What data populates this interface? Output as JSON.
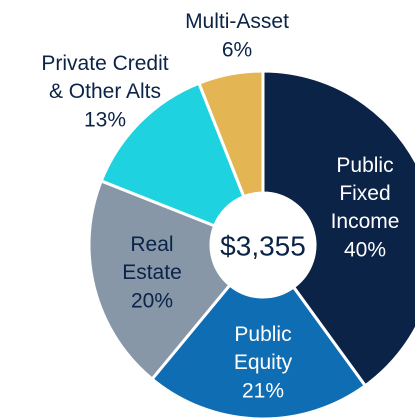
{
  "chart_data": {
    "type": "donut",
    "center_label": "$3,355",
    "categories": [
      "Public\nFixed\nIncome",
      "Public\nEquity",
      "Real\nEstate",
      "Private Credit\n& Other Alts",
      "Multi-Asset"
    ],
    "values": [
      40,
      21,
      20,
      13,
      6
    ],
    "value_labels": [
      "40%",
      "21%",
      "20%",
      "13%",
      "6%"
    ],
    "colors": [
      "#0b2347",
      "#0f6db3",
      "#8797a8",
      "#1fd2df",
      "#e4b553"
    ]
  }
}
